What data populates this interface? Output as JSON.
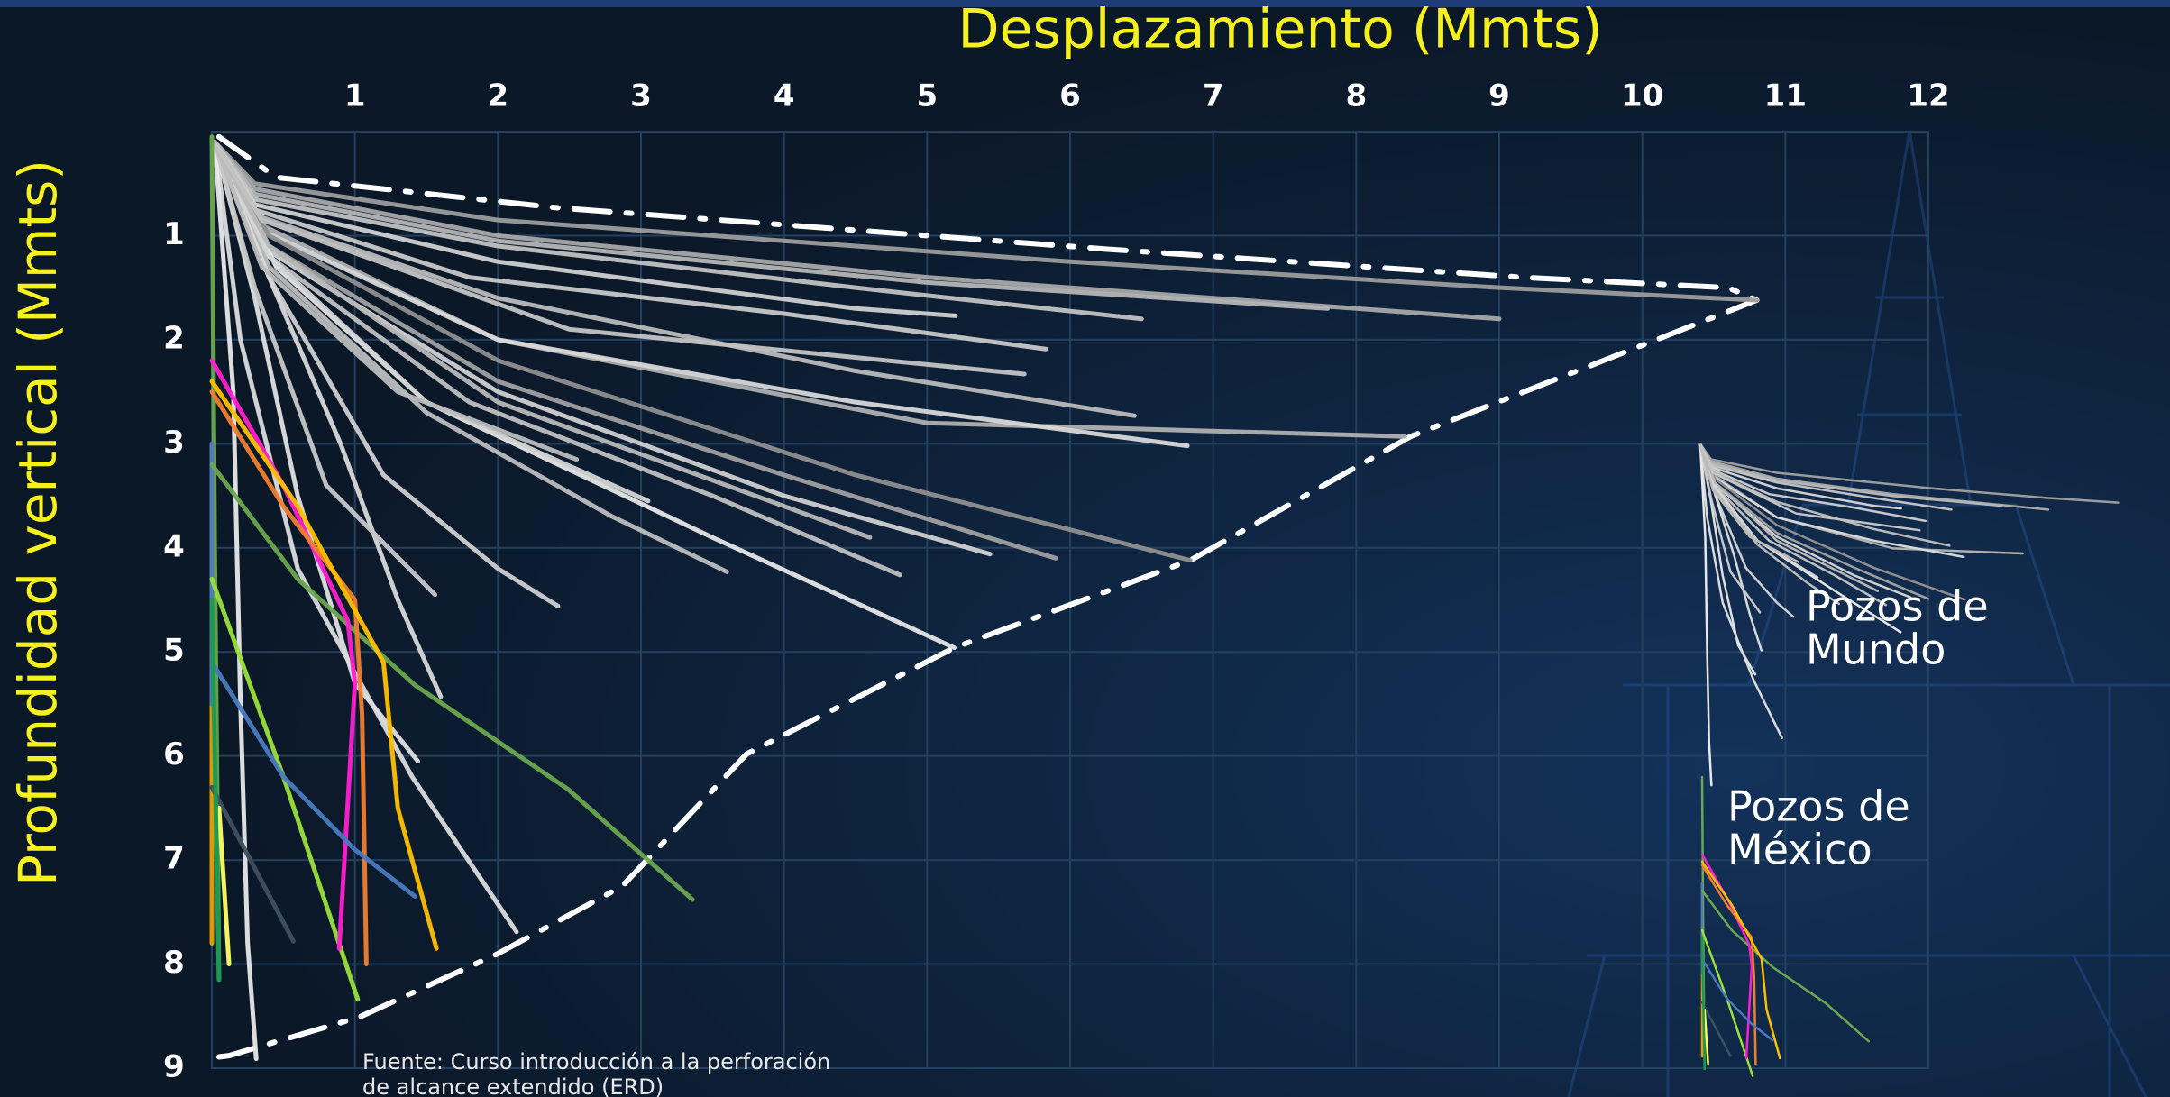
{
  "chart_data": {
    "type": "line",
    "title": "Desplazamiento (Mmts)",
    "y_label": "Profundidad vertical (Mmts)",
    "xlim": [
      0,
      12
    ],
    "ylim": [
      0,
      9
    ],
    "y_inverted": true,
    "xticks": [
      1,
      2,
      3,
      4,
      5,
      6,
      7,
      8,
      9,
      10,
      11,
      12
    ],
    "yticks": [
      1,
      2,
      3,
      4,
      5,
      6,
      7,
      8,
      9
    ],
    "grid": true,
    "annotations": [
      [
        "Pozos de",
        "Mundo"
      ],
      [
        "Pozos de",
        "México"
      ]
    ],
    "source": [
      "Fuente: Curso introducción a la perforación",
      "de alcance extendido (ERD)"
    ],
    "series": [
      {
        "color": "#ffffff",
        "style": "dash-dot",
        "x": [
          0.05,
          0.45,
          2.4,
          6.26,
          9.16,
          10.6,
          10.8,
          8.38,
          6.84,
          5.19,
          3.74,
          2.87,
          2.0,
          1.03,
          0.12,
          0.0
        ],
        "values": [
          0.05,
          0.44,
          0.73,
          1.13,
          1.4,
          1.5,
          1.62,
          2.93,
          4.12,
          4.96,
          5.98,
          7.25,
          7.9,
          8.51,
          8.88,
          8.9
        ]
      },
      {
        "color": "#9c9c9c",
        "x": [
          0.02,
          0.3,
          2,
          6,
          9,
          10.8
        ],
        "values": [
          0.1,
          0.5,
          0.85,
          1.25,
          1.5,
          1.62
        ]
      },
      {
        "color": "#a8a8a8",
        "x": [
          0.02,
          0.3,
          2,
          5,
          7.5,
          9
        ],
        "values": [
          0.1,
          0.55,
          1.0,
          1.4,
          1.65,
          1.8
        ]
      },
      {
        "color": "#b5b5b5",
        "x": [
          0.02,
          0.3,
          2,
          5,
          7.8
        ],
        "values": [
          0.1,
          0.6,
          1.05,
          1.45,
          1.7
        ]
      },
      {
        "color": "#c2c2c2",
        "x": [
          0.02,
          0.3,
          2,
          4.5,
          6.5
        ],
        "values": [
          0.1,
          0.65,
          1.1,
          1.5,
          1.8
        ]
      },
      {
        "color": "#d0d0d0",
        "x": [
          0.02,
          0.3,
          2,
          4.5,
          5.2
        ],
        "values": [
          0.1,
          0.7,
          1.25,
          1.7,
          1.77
        ]
      },
      {
        "color": "#c8c8c8",
        "x": [
          0.02,
          0.3,
          1.8,
          4,
          5.83
        ],
        "values": [
          0.1,
          0.75,
          1.4,
          1.75,
          2.09
        ]
      },
      {
        "color": "#bababa",
        "x": [
          0.02,
          0.3,
          2,
          4.5,
          6.45
        ],
        "values": [
          0.1,
          0.8,
          1.6,
          2.3,
          2.73
        ]
      },
      {
        "color": "#b0b0b0",
        "x": [
          0.02,
          0.35,
          2,
          5,
          8.34
        ],
        "values": [
          0.1,
          0.9,
          2.0,
          2.8,
          2.93
        ]
      },
      {
        "color": "#d8d8d8",
        "x": [
          0.02,
          0.35,
          2,
          4.5,
          6.82
        ],
        "values": [
          0.1,
          0.95,
          2.0,
          2.6,
          3.02
        ]
      },
      {
        "color": "#8f8f8f",
        "x": [
          0.02,
          0.4,
          2,
          4.5,
          6.84
        ],
        "values": [
          0.1,
          1.0,
          2.2,
          3.3,
          4.12
        ]
      },
      {
        "color": "#a0a0a0",
        "x": [
          0.02,
          0.4,
          2,
          4,
          5.9
        ],
        "values": [
          0.1,
          1.1,
          2.4,
          3.3,
          4.1
        ]
      },
      {
        "color": "#d0d0d0",
        "x": [
          0.02,
          0.4,
          2,
          4,
          5.44
        ],
        "values": [
          0.1,
          1.15,
          2.5,
          3.5,
          4.06
        ]
      },
      {
        "color": "#c0c0c0",
        "x": [
          0.02,
          0.4,
          1.8,
          3.5,
          4.81
        ],
        "values": [
          0.1,
          1.2,
          2.6,
          3.5,
          4.26
        ]
      },
      {
        "color": "#e6e6e6",
        "x": [
          0.02,
          0.45,
          1.5,
          3.5,
          5.19
        ],
        "values": [
          0.1,
          1.3,
          2.6,
          3.9,
          4.96
        ]
      },
      {
        "color": "#bdbdbd",
        "x": [
          0.02,
          0.4,
          1.5,
          2.8,
          3.6
        ],
        "values": [
          0.1,
          1.3,
          2.7,
          3.7,
          4.23
        ]
      },
      {
        "color": "#cfcfcf",
        "x": [
          0.02,
          0.4,
          1.2,
          2.0,
          2.42
        ],
        "values": [
          0.1,
          1.4,
          3.3,
          4.2,
          4.56
        ]
      },
      {
        "color": "#d8d8d8",
        "x": [
          0.02,
          0.4,
          0.9,
          1.3,
          1.6
        ],
        "values": [
          0.1,
          1.4,
          3.0,
          4.5,
          5.43
        ]
      },
      {
        "color": "#e0e0e0",
        "x": [
          0.02,
          0.3,
          0.6,
          1.0,
          1.44
        ],
        "values": [
          0.1,
          1.6,
          3.5,
          5.3,
          6.05
        ]
      },
      {
        "color": "#dcdcdc",
        "x": [
          0.02,
          0.2,
          0.6,
          1.4,
          2.13
        ],
        "values": [
          0.1,
          2.0,
          4.2,
          6.2,
          7.69
        ]
      },
      {
        "color": "#e8e8e8",
        "x": [
          0.02,
          0.15,
          0.2,
          0.25,
          0.31
        ],
        "values": [
          0.1,
          2.5,
          5.5,
          7.8,
          8.91
        ]
      },
      {
        "color": "#c8c8c8",
        "x": [
          0.02,
          0.3,
          0.8,
          1.56
        ],
        "values": [
          0.1,
          1.5,
          3.4,
          4.45
        ]
      },
      {
        "color": "#d4d4d4",
        "x": [
          0.02,
          0.4,
          1.5,
          3.05
        ],
        "values": [
          0.1,
          1.2,
          2.6,
          3.55
        ]
      },
      {
        "color": "#bcbcbc",
        "x": [
          0.02,
          0.35,
          1.3,
          2.55
        ],
        "values": [
          0.1,
          1.3,
          2.5,
          3.15
        ]
      },
      {
        "color": "#b8b8b8",
        "x": [
          0.02,
          0.4,
          2,
          4.6
        ],
        "values": [
          0.1,
          1.1,
          2.6,
          3.9
        ]
      },
      {
        "color": "#c4c4c4",
        "x": [
          0.02,
          0.35,
          2.5,
          5.68
        ],
        "values": [
          0.1,
          0.85,
          1.9,
          2.33
        ]
      },
      {
        "color": "#6aa84f",
        "x": [
          0,
          0.02,
          0.05
        ],
        "values": [
          0.05,
          4,
          8.15
        ]
      },
      {
        "color": "#e8a000",
        "x": [
          0,
          0
        ],
        "values": [
          3.0,
          7.8
        ]
      },
      {
        "color": "#4a7ac0",
        "x": [
          0,
          0
        ],
        "values": [
          3.0,
          5.5
        ]
      },
      {
        "color": "#6aa84f",
        "x": [
          0,
          0.6,
          1.42,
          2.49,
          3.36
        ],
        "values": [
          3.2,
          4.3,
          5.32,
          6.32,
          7.38
        ]
      },
      {
        "color": "#9be03c",
        "x": [
          0,
          0.5,
          1.02
        ],
        "values": [
          4.3,
          6.2,
          8.34
        ]
      },
      {
        "color": "#ff1fd0",
        "x": [
          0,
          0.5,
          0.95,
          1.0,
          0.89
        ],
        "values": [
          2.2,
          3.4,
          4.7,
          5.3,
          7.85
        ]
      },
      {
        "color": "#f08030",
        "x": [
          0,
          0.5,
          1.0,
          1.05,
          1.08
        ],
        "values": [
          2.5,
          3.6,
          4.5,
          5.6,
          8.0
        ]
      },
      {
        "color": "#ffc000",
        "x": [
          0,
          0.6,
          1.2,
          1.3,
          1.57
        ],
        "values": [
          2.4,
          3.6,
          5.1,
          6.5,
          7.85
        ]
      },
      {
        "color": "#4a7ac0",
        "x": [
          0,
          0.5,
          1.0,
          1.42
        ],
        "values": [
          5.1,
          6.2,
          6.9,
          7.35
        ]
      },
      {
        "color": "#3f5060",
        "x": [
          0,
          0.57
        ],
        "values": [
          6.3,
          7.78
        ]
      },
      {
        "color": "#ffff66",
        "x": [
          0.05,
          0.12
        ],
        "values": [
          6.5,
          8.0
        ]
      },
      {
        "color": "#1a9a50",
        "x": [
          0,
          0.05
        ],
        "values": [
          4.5,
          8.15
        ]
      }
    ]
  }
}
